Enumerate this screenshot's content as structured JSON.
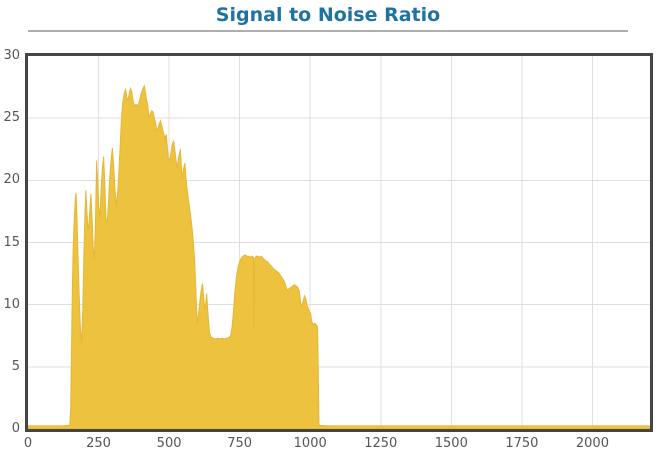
{
  "title_block": {
    "title": "Signal to Noise Ratio"
  },
  "colors": {
    "title": "#1E73A2",
    "underline": "#AEAEAE",
    "plot_border": "#454545",
    "grid": "#DFDFDF",
    "tick_label": "#555555",
    "area_fill": "#ECC23F",
    "area_stroke": "#E6B637"
  },
  "chart_data": {
    "type": "area",
    "title": "Signal to Noise Ratio",
    "xlabel": "",
    "ylabel": "",
    "xlim": [
      0,
      2204
    ],
    "ylim": [
      0,
      30
    ],
    "x_ticks": [
      0,
      250,
      500,
      750,
      1000,
      1250,
      1500,
      1750,
      2000
    ],
    "y_ticks": [
      0,
      5,
      10,
      15,
      20,
      25,
      30
    ],
    "grid": true,
    "legend": "none",
    "series": [
      {
        "name": "Signal to Noise Ratio",
        "points": [
          [
            0,
            0.25
          ],
          [
            40,
            0.25
          ],
          [
            80,
            0.25
          ],
          [
            120,
            0.25
          ],
          [
            148,
            0.3
          ],
          [
            151,
            1.5
          ],
          [
            154,
            6
          ],
          [
            157,
            11
          ],
          [
            160,
            14.5
          ],
          [
            164,
            17
          ],
          [
            168,
            18.6
          ],
          [
            170,
            19
          ],
          [
            173,
            17.5
          ],
          [
            177,
            14
          ],
          [
            181,
            11
          ],
          [
            186,
            8
          ],
          [
            190,
            6.9
          ],
          [
            194,
            9.5
          ],
          [
            198,
            14
          ],
          [
            202,
            17.5
          ],
          [
            205,
            19.2
          ],
          [
            208,
            17.8
          ],
          [
            212,
            16.3
          ],
          [
            215,
            16.1
          ],
          [
            219,
            17.6
          ],
          [
            223,
            18.9
          ],
          [
            227,
            17
          ],
          [
            231,
            14.6
          ],
          [
            235,
            13.7
          ],
          [
            239,
            16.5
          ],
          [
            243,
            21.6
          ],
          [
            247,
            19.8
          ],
          [
            251,
            17.8
          ],
          [
            255,
            17
          ],
          [
            259,
            19.3
          ],
          [
            264,
            21
          ],
          [
            268,
            21.9
          ],
          [
            272,
            19.8
          ],
          [
            276,
            17
          ],
          [
            281,
            16.6
          ],
          [
            286,
            18.6
          ],
          [
            291,
            20.7
          ],
          [
            295,
            21.8
          ],
          [
            299,
            22.6
          ],
          [
            304,
            21
          ],
          [
            309,
            19
          ],
          [
            314,
            17.9
          ],
          [
            320,
            19.8
          ],
          [
            326,
            22.5
          ],
          [
            331,
            24.9
          ],
          [
            336,
            26.3
          ],
          [
            341,
            27
          ],
          [
            346,
            27.3
          ],
          [
            350,
            26.7
          ],
          [
            354,
            26.4
          ],
          [
            358,
            26.9
          ],
          [
            363,
            27.4
          ],
          [
            368,
            27.1
          ],
          [
            373,
            26.3
          ],
          [
            378,
            26
          ],
          [
            383,
            26.1
          ],
          [
            388,
            26
          ],
          [
            393,
            26.2
          ],
          [
            398,
            26.7
          ],
          [
            403,
            27.1
          ],
          [
            408,
            27.4
          ],
          [
            412,
            27.6
          ],
          [
            416,
            27.1
          ],
          [
            420,
            26.5
          ],
          [
            424,
            26.1
          ],
          [
            428,
            25.1
          ],
          [
            433,
            25.3
          ],
          [
            438,
            25.6
          ],
          [
            443,
            25.5
          ],
          [
            448,
            25
          ],
          [
            452,
            24.6
          ],
          [
            457,
            23.9
          ],
          [
            463,
            24.4
          ],
          [
            469,
            24.8
          ],
          [
            475,
            24.3
          ],
          [
            480,
            23.8
          ],
          [
            486,
            23.4
          ],
          [
            490,
            23.7
          ],
          [
            497,
            21.8
          ],
          [
            503,
            21.6
          ],
          [
            510,
            22.8
          ],
          [
            516,
            23.2
          ],
          [
            522,
            22.1
          ],
          [
            528,
            21
          ],
          [
            534,
            21.9
          ],
          [
            540,
            22.5
          ],
          [
            546,
            20.1
          ],
          [
            551,
            20.9
          ],
          [
            556,
            21.4
          ],
          [
            562,
            19.6
          ],
          [
            569,
            18.4
          ],
          [
            576,
            17.2
          ],
          [
            583,
            15.8
          ],
          [
            590,
            13.8
          ],
          [
            596,
            10.5
          ],
          [
            600,
            8.3
          ],
          [
            606,
            9.6
          ],
          [
            612,
            10.9
          ],
          [
            618,
            11.7
          ],
          [
            624,
            10.2
          ],
          [
            628,
            9.6
          ],
          [
            633,
            10.9
          ],
          [
            638,
            9.2
          ],
          [
            643,
            7.8
          ],
          [
            648,
            7.4
          ],
          [
            656,
            7.3
          ],
          [
            664,
            7.25
          ],
          [
            672,
            7.3
          ],
          [
            680,
            7.25
          ],
          [
            688,
            7.3
          ],
          [
            696,
            7.25
          ],
          [
            704,
            7.3
          ],
          [
            712,
            7.35
          ],
          [
            718,
            7.5
          ],
          [
            723,
            8.2
          ],
          [
            728,
            9.4
          ],
          [
            733,
            11
          ],
          [
            739,
            12.3
          ],
          [
            745,
            13.1
          ],
          [
            751,
            13.5
          ],
          [
            757,
            13.8
          ],
          [
            763,
            13.9
          ],
          [
            769,
            14
          ],
          [
            775,
            13.9
          ],
          [
            781,
            13.9
          ],
          [
            787,
            13.8
          ],
          [
            793,
            13.9
          ],
          [
            799,
            13.8
          ],
          [
            801,
            8.2
          ],
          [
            803,
            13.7
          ],
          [
            809,
            13.9
          ],
          [
            815,
            13.9
          ],
          [
            821,
            13.8
          ],
          [
            827,
            13.9
          ],
          [
            833,
            13.7
          ],
          [
            839,
            13.6
          ],
          [
            845,
            13.5
          ],
          [
            851,
            13.4
          ],
          [
            857,
            13.2
          ],
          [
            863,
            13.1
          ],
          [
            869,
            12.9
          ],
          [
            875,
            12.8
          ],
          [
            881,
            12.7
          ],
          [
            887,
            12.6
          ],
          [
            893,
            12.4
          ],
          [
            899,
            12.2
          ],
          [
            905,
            12
          ],
          [
            911,
            11.7
          ],
          [
            916,
            11.3
          ],
          [
            920,
            11.2
          ],
          [
            926,
            11.3
          ],
          [
            932,
            11.4
          ],
          [
            938,
            11.5
          ],
          [
            944,
            11.6
          ],
          [
            950,
            11.5
          ],
          [
            956,
            11.4
          ],
          [
            961,
            11.1
          ],
          [
            966,
            10.2
          ],
          [
            970,
            9.8
          ],
          [
            975,
            10.3
          ],
          [
            980,
            10.7
          ],
          [
            985,
            10.4
          ],
          [
            990,
            9.9
          ],
          [
            996,
            9.5
          ],
          [
            1001,
            9.3
          ],
          [
            1006,
            8.6
          ],
          [
            1011,
            8.4
          ],
          [
            1016,
            8.5
          ],
          [
            1021,
            8.4
          ],
          [
            1026,
            8.2
          ],
          [
            1029,
            4
          ],
          [
            1031,
            0.3
          ],
          [
            1060,
            0.25
          ],
          [
            1150,
            0.25
          ],
          [
            1250,
            0.25
          ],
          [
            1400,
            0.25
          ],
          [
            1550,
            0.25
          ],
          [
            1700,
            0.25
          ],
          [
            1850,
            0.25
          ],
          [
            2000,
            0.25
          ],
          [
            2100,
            0.25
          ],
          [
            2204,
            0.25
          ]
        ]
      }
    ]
  }
}
